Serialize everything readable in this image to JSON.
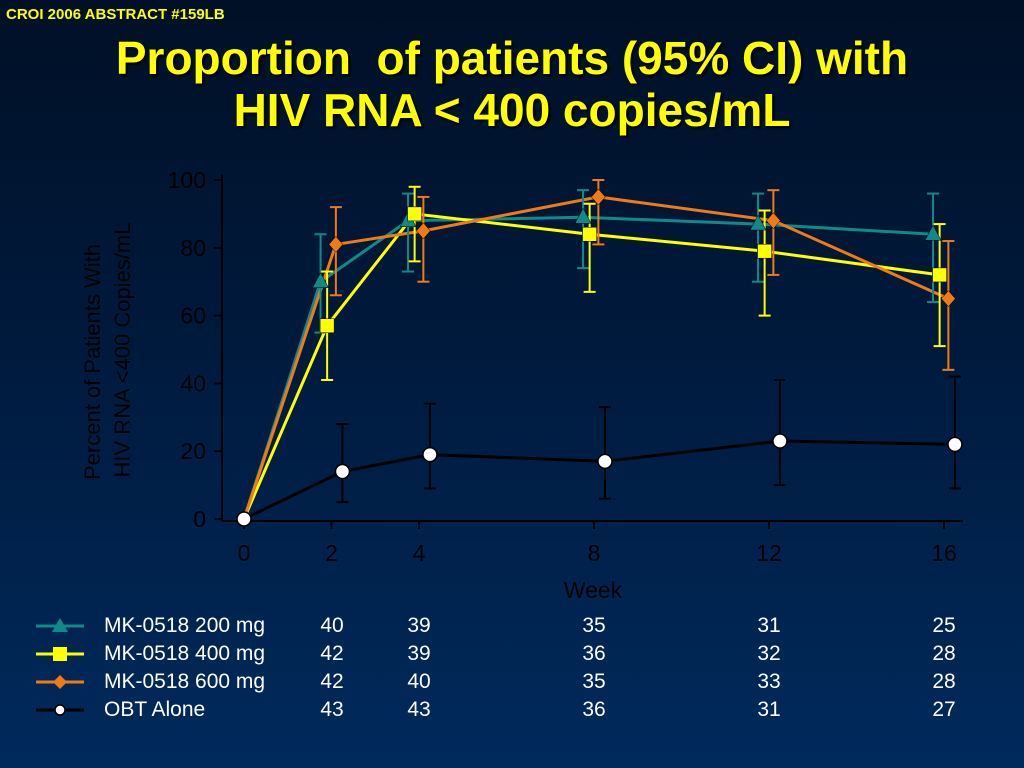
{
  "header": {
    "tag": "CROI 2006 ABSTRACT #159LB",
    "title_line1": "Proportion  of patients (95% CI) with",
    "title_line2": "HIV RNA < 400 copies/mL"
  },
  "chart_data": {
    "type": "line",
    "title": "",
    "xlabel": "Week",
    "ylabel_line1": "Percent of Patients With",
    "ylabel_line2": "HIV RNA <400 Copies/mL",
    "x": [
      0,
      2,
      4,
      8,
      12,
      16
    ],
    "x_ticks": [
      "0",
      "2",
      "4",
      "8",
      "12",
      "16"
    ],
    "y_ticks": [
      "0",
      "20",
      "40",
      "60",
      "80",
      "100"
    ],
    "ylim": [
      0,
      100
    ],
    "xlim": [
      0,
      16
    ],
    "grid": false,
    "series": [
      {
        "name": "MK-0518 200 mg",
        "color": "#0f8a8a",
        "marker": "triangle",
        "x_offset": -0.25,
        "values": [
          0,
          70,
          88,
          89,
          87,
          84
        ],
        "ci_low": [
          0,
          55,
          73,
          74,
          70,
          64
        ],
        "ci_high": [
          0,
          84,
          96,
          97,
          96,
          96
        ],
        "counts": [
          "40",
          "39",
          "35",
          "31",
          "25"
        ]
      },
      {
        "name": "MK-0518 400 mg",
        "color": "#ffff00",
        "marker": "square",
        "x_offset": -0.1,
        "values": [
          0,
          57,
          90,
          84,
          79,
          72
        ],
        "ci_low": [
          0,
          41,
          76,
          67,
          60,
          51
        ],
        "ci_high": [
          0,
          73,
          98,
          93,
          91,
          87
        ],
        "counts": [
          "42",
          "39",
          "36",
          "32",
          "28"
        ]
      },
      {
        "name": "MK-0518 600 mg",
        "color": "#f07a14",
        "marker": "diamond",
        "x_offset": 0.1,
        "values": [
          0,
          81,
          85,
          95,
          88,
          65
        ],
        "ci_low": [
          0,
          66,
          70,
          81,
          72,
          44
        ],
        "ci_high": [
          0,
          92,
          95,
          100,
          97,
          82
        ],
        "counts": [
          "42",
          "40",
          "35",
          "33",
          "28"
        ]
      },
      {
        "name": "OBT Alone",
        "color": "#000000",
        "marker": "circle",
        "x_offset": 0.25,
        "values": [
          0,
          14,
          19,
          17,
          23,
          22
        ],
        "ci_low": [
          0,
          5,
          9,
          6,
          10,
          9
        ],
        "ci_high": [
          0,
          28,
          34,
          33,
          41,
          42
        ],
        "counts": [
          "43",
          "43",
          "36",
          "31",
          "27"
        ]
      }
    ]
  }
}
